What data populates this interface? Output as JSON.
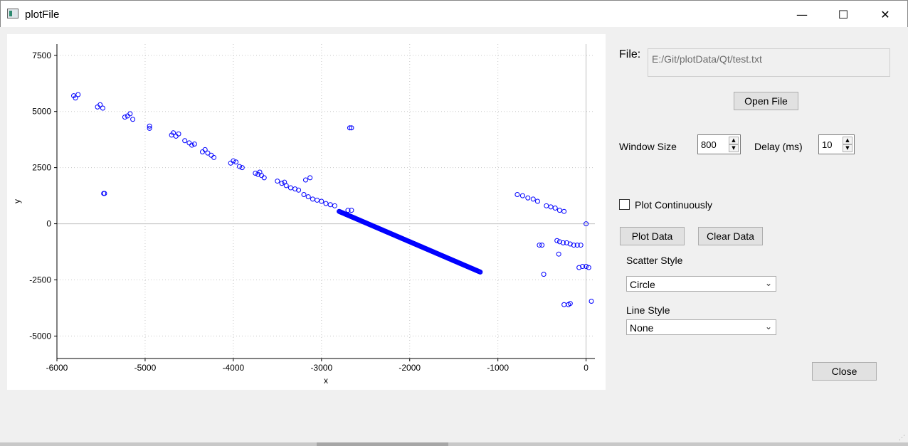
{
  "window": {
    "title": "plotFile",
    "minimize_glyph": "—",
    "maximize_glyph": "☐",
    "close_glyph": "✕"
  },
  "controls": {
    "file_label": "File:",
    "file_path": "E:/Git/plotData/Qt/test.txt",
    "open_file_label": "Open File",
    "window_size_label": "Window Size",
    "window_size_value": "800",
    "delay_label": "Delay (ms)",
    "delay_value": "10",
    "plot_continuously_label": "Plot Continuously",
    "plot_continuously_checked": false,
    "plot_data_label": "Plot Data",
    "clear_data_label": "Clear Data",
    "scatter_style_label": "Scatter Style",
    "scatter_style_value": "Circle",
    "line_style_label": "Line Style",
    "line_style_value": "None",
    "close_label": "Close"
  },
  "chart_data": {
    "type": "scatter",
    "title": "",
    "xlabel": "x",
    "ylabel": "y",
    "xlim": [
      -6000,
      100
    ],
    "ylim": [
      -6000,
      8000
    ],
    "xticks": [
      -6000,
      -5000,
      -4000,
      -3000,
      -2000,
      -1000,
      0
    ],
    "yticks": [
      -5000,
      -2500,
      0,
      2500,
      5000,
      7500
    ],
    "grid": true,
    "marker": "circle",
    "marker_color": "#0000ff",
    "series": [
      {
        "clusters": [
          {
            "x": -5810,
            "y": 5700
          },
          {
            "x": -5790,
            "y": 5600
          },
          {
            "x": -5760,
            "y": 5750
          },
          {
            "x": -5540,
            "y": 5200
          },
          {
            "x": -5510,
            "y": 5300
          },
          {
            "x": -5480,
            "y": 5150
          },
          {
            "x": -5470,
            "y": 1350
          },
          {
            "x": -5460,
            "y": 1350
          },
          {
            "x": -5230,
            "y": 4750
          },
          {
            "x": -5200,
            "y": 4800
          },
          {
            "x": -5170,
            "y": 4900
          },
          {
            "x": -5140,
            "y": 4650
          },
          {
            "x": -4950,
            "y": 4350
          },
          {
            "x": -4950,
            "y": 4250
          },
          {
            "x": -4700,
            "y": 3950
          },
          {
            "x": -4680,
            "y": 4050
          },
          {
            "x": -4650,
            "y": 3900
          },
          {
            "x": -4620,
            "y": 4000
          },
          {
            "x": -4550,
            "y": 3700
          },
          {
            "x": -4500,
            "y": 3600
          },
          {
            "x": -4470,
            "y": 3500
          },
          {
            "x": -4440,
            "y": 3550
          },
          {
            "x": -4350,
            "y": 3200
          },
          {
            "x": -4320,
            "y": 3300
          },
          {
            "x": -4290,
            "y": 3150
          },
          {
            "x": -4250,
            "y": 3050
          },
          {
            "x": -4220,
            "y": 2950
          },
          {
            "x": -4030,
            "y": 2700
          },
          {
            "x": -4000,
            "y": 2800
          },
          {
            "x": -3970,
            "y": 2750
          },
          {
            "x": -3930,
            "y": 2550
          },
          {
            "x": -3900,
            "y": 2500
          },
          {
            "x": -3750,
            "y": 2250
          },
          {
            "x": -3720,
            "y": 2200
          },
          {
            "x": -3700,
            "y": 2300
          },
          {
            "x": -3680,
            "y": 2150
          },
          {
            "x": -3650,
            "y": 2050
          },
          {
            "x": -3500,
            "y": 1900
          },
          {
            "x": -3450,
            "y": 1800
          },
          {
            "x": -3420,
            "y": 1850
          },
          {
            "x": -3400,
            "y": 1700
          },
          {
            "x": -3350,
            "y": 1600
          },
          {
            "x": -3300,
            "y": 1550
          },
          {
            "x": -3260,
            "y": 1500
          },
          {
            "x": -3200,
            "y": 1300
          },
          {
            "x": -3180,
            "y": 1950
          },
          {
            "x": -3130,
            "y": 2050
          },
          {
            "x": -3150,
            "y": 1200
          },
          {
            "x": -3100,
            "y": 1100
          },
          {
            "x": -3050,
            "y": 1050
          },
          {
            "x": -3000,
            "y": 1000
          },
          {
            "x": -2950,
            "y": 900
          },
          {
            "x": -2900,
            "y": 850
          },
          {
            "x": -2850,
            "y": 800
          },
          {
            "x": -2680,
            "y": 4270
          },
          {
            "x": -2660,
            "y": 4270
          },
          {
            "x": -2700,
            "y": 600
          },
          {
            "x": -2660,
            "y": 600
          },
          {
            "x": -780,
            "y": 1300
          },
          {
            "x": -720,
            "y": 1250
          },
          {
            "x": -660,
            "y": 1150
          },
          {
            "x": -600,
            "y": 1100
          },
          {
            "x": -550,
            "y": 1000
          },
          {
            "x": -450,
            "y": 800
          },
          {
            "x": -400,
            "y": 750
          },
          {
            "x": -350,
            "y": 700
          },
          {
            "x": -300,
            "y": 600
          },
          {
            "x": -250,
            "y": 550
          },
          {
            "x": -530,
            "y": -950
          },
          {
            "x": -500,
            "y": -950
          },
          {
            "x": -480,
            "y": -2250
          },
          {
            "x": -330,
            "y": -750
          },
          {
            "x": -300,
            "y": -800
          },
          {
            "x": -260,
            "y": -850
          },
          {
            "x": -220,
            "y": -850
          },
          {
            "x": -180,
            "y": -900
          },
          {
            "x": -140,
            "y": -950
          },
          {
            "x": -100,
            "y": -950
          },
          {
            "x": -60,
            "y": -950
          },
          {
            "x": -310,
            "y": -1350
          },
          {
            "x": -250,
            "y": -3600
          },
          {
            "x": -200,
            "y": -3600
          },
          {
            "x": -180,
            "y": -3550
          },
          {
            "x": -80,
            "y": -1950
          },
          {
            "x": -40,
            "y": -1900
          },
          {
            "x": 0,
            "y": -1900
          },
          {
            "x": 30,
            "y": -1950
          },
          {
            "x": 0,
            "y": 0
          },
          {
            "x": 60,
            "y": -3450
          }
        ],
        "dense_segment": {
          "x_start": -2800,
          "y_start": 550,
          "x_end": -1200,
          "y_end": -2150,
          "count": 220
        }
      }
    ]
  }
}
